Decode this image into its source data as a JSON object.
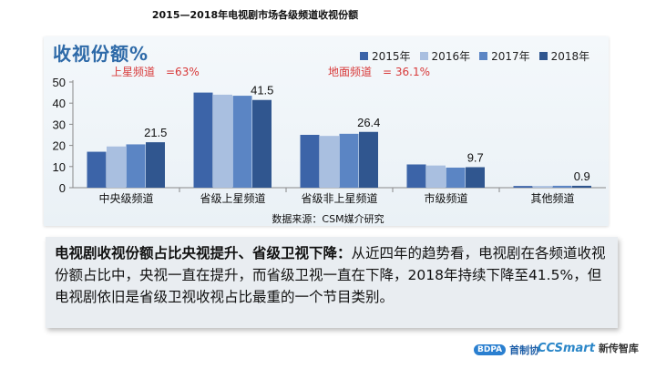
{
  "page_title": "2015—2018年电视剧市场各级频道收视份额",
  "chart_data": {
    "type": "bar",
    "title": "收视份额%",
    "categories": [
      "中央级频道",
      "省级上星频道",
      "省级非上星频道",
      "市级频道",
      "其他频道"
    ],
    "series": [
      {
        "name": "2015年",
        "color": "#3c64a8",
        "values": [
          17.0,
          45.0,
          25.0,
          11.0,
          0.8
        ]
      },
      {
        "name": "2016年",
        "color": "#a9bfe0",
        "values": [
          19.5,
          44.0,
          24.5,
          10.5,
          0.8
        ]
      },
      {
        "name": "2017年",
        "color": "#5b85c4",
        "values": [
          20.5,
          43.5,
          25.5,
          9.5,
          0.9
        ]
      },
      {
        "name": "2018年",
        "color": "#30568f",
        "values": [
          21.5,
          41.5,
          26.4,
          9.7,
          0.9
        ]
      }
    ],
    "data_labels": [
      "21.5",
      "41.5",
      "26.4",
      "9.7",
      "0.9"
    ],
    "yticks": [
      0,
      10,
      20,
      30,
      40,
      50
    ],
    "ylim": [
      0,
      50
    ],
    "legend": "top-right",
    "annotations": {
      "satellite": "上星频道　=63%",
      "ground": "地面频道　= 36.1%"
    }
  },
  "source": "数据来源：CSM媒介研究",
  "summary": {
    "bold": "电视剧收视份额占比央视提升、省级卫视下降：",
    "text": "从近四年的趋势看，电视剧在各频道收视份额占比中，央视一直在提升，而省级卫视一直在下降，2018年持续下降至41.5%，但电视剧依旧是省级卫视收视占比最重的一个节目类别。"
  },
  "footer": {
    "logo1_mark": "BDPA",
    "logo1_text": "首制协",
    "logo2_mark": "CCSmart",
    "logo2_text": "新传智库"
  }
}
